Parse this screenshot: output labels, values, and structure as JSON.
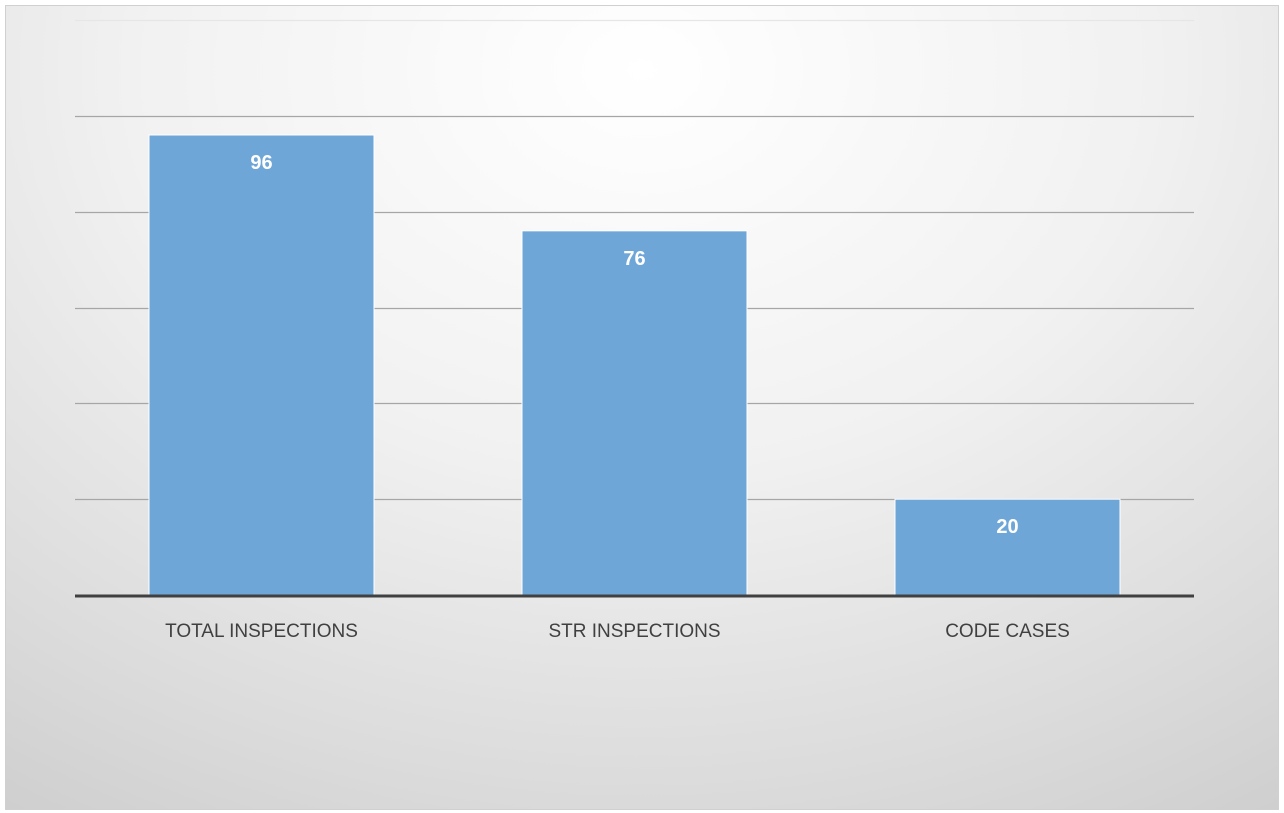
{
  "chart_data": {
    "type": "bar",
    "categories": [
      "TOTAL INSPECTIONS",
      "STR INSPECTIONS",
      "CODE CASES"
    ],
    "values": [
      96,
      76,
      20
    ],
    "title": "",
    "xlabel": "",
    "ylabel": "",
    "ylim": [
      0,
      120
    ],
    "gridline_step": 20,
    "grid": true,
    "show_y_tick_labels": false,
    "data_labels": "inside-top",
    "colors": {
      "bar": "#6fa6d8",
      "bar_border": "#ffffff",
      "gridline": "#a6a6a6",
      "axis": "#404040",
      "data_label": "#ffffff",
      "category_label": "#404040"
    }
  }
}
